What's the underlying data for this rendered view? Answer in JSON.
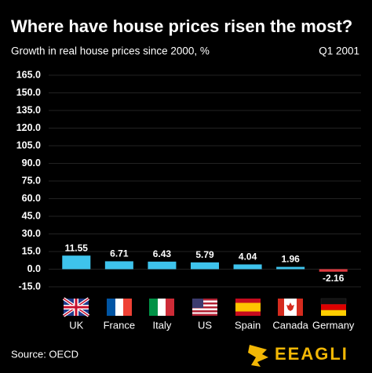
{
  "chart_data": {
    "type": "bar",
    "title": "Where have house prices risen the most?",
    "subtitle": "Growth in real house prices since 2000, %",
    "annotation": "Q1 2001",
    "source": "Source: OECD",
    "logo": "EEAGLI",
    "categories": [
      "UK",
      "France",
      "Italy",
      "US",
      "Spain",
      "Canada",
      "Germany"
    ],
    "values": [
      11.55,
      6.71,
      6.43,
      5.79,
      4.04,
      1.96,
      -2.16
    ],
    "colors": [
      "#3ec3ec",
      "#3ec3ec",
      "#3ec3ec",
      "#3ec3ec",
      "#3ec3ec",
      "#3ec3ec",
      "#e0383e"
    ],
    "ylim": [
      -15,
      165
    ],
    "yticks": [
      {
        "value": -15,
        "label": "-15.0"
      },
      {
        "value": 0,
        "label": "0.0"
      },
      {
        "value": 15,
        "label": "15.0"
      },
      {
        "value": 30,
        "label": "30.0"
      },
      {
        "value": 45,
        "label": "45.0"
      },
      {
        "value": 60,
        "label": "60.0"
      },
      {
        "value": 75,
        "label": "75.0"
      },
      {
        "value": 90,
        "label": "90.0"
      },
      {
        "value": 105,
        "label": "105.0"
      },
      {
        "value": 120,
        "label": "120.0"
      },
      {
        "value": 135,
        "label": "135.0"
      },
      {
        "value": 150,
        "label": "150.0"
      },
      {
        "value": 165,
        "label": "165.0"
      }
    ],
    "grid": true
  }
}
